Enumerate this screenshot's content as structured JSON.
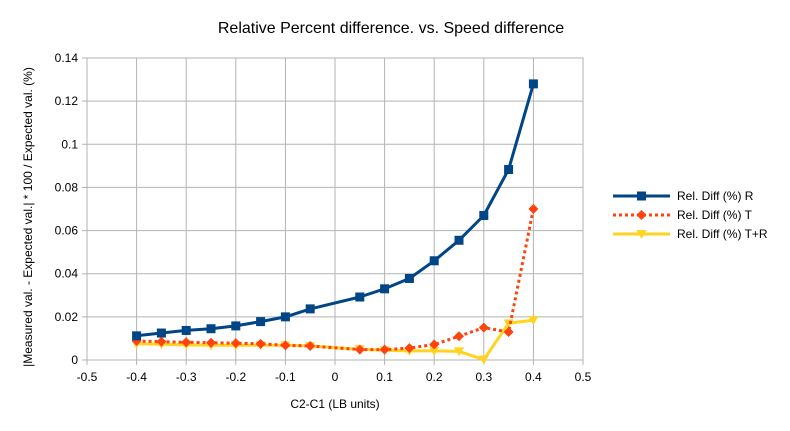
{
  "chart_data": {
    "type": "line",
    "title": "Relative Percent difference. vs. Speed difference",
    "xlabel": "C2-C1 (LB units)",
    "ylabel": "|Measured val. - Expected val.| * 100 / Expected val. (%)",
    "xlim": [
      -0.5,
      0.5
    ],
    "ylim": [
      0,
      0.14
    ],
    "x_ticks": [
      "-0.5",
      "-0.4",
      "-0.3",
      "-0.2",
      "-0.1",
      "0",
      "0.1",
      "0.2",
      "0.3",
      "0.4",
      "0.5"
    ],
    "y_ticks": [
      "0",
      "0.02",
      "0.04",
      "0.06",
      "0.08",
      "0.1",
      "0.12",
      "0.14"
    ],
    "grid": "horizontal and vertical major gridlines",
    "legend_position": "right",
    "x": [
      -0.4,
      -0.35,
      -0.3,
      -0.25,
      -0.2,
      -0.15,
      -0.1,
      -0.05,
      0.05,
      0.1,
      0.15,
      0.2,
      0.25,
      0.3,
      0.35,
      0.4
    ],
    "series": [
      {
        "name": "Rel. Diff (%) R",
        "color": "#004586",
        "line_style": "solid",
        "marker": "square",
        "values": [
          0.0112,
          0.0125,
          0.0137,
          0.0145,
          0.0158,
          0.0178,
          0.02,
          0.0237,
          0.0292,
          0.033,
          0.0378,
          0.046,
          0.0555,
          0.067,
          0.0883,
          0.128
        ]
      },
      {
        "name": "Rel. Diff (%) T",
        "color": "#ff420e",
        "line_style": "dotted",
        "marker": "diamond",
        "values": [
          0.0088,
          0.0085,
          0.0082,
          0.008,
          0.0078,
          0.0075,
          0.0068,
          0.0065,
          0.0048,
          0.0048,
          0.0055,
          0.0072,
          0.011,
          0.015,
          0.013,
          0.07
        ]
      },
      {
        "name": "Rel. Diff (%) T+R",
        "color": "#ffd320",
        "line_style": "solid",
        "marker": "triangle-down",
        "values": [
          0.0075,
          0.0073,
          0.007,
          0.0068,
          0.0068,
          0.0068,
          0.0068,
          0.0065,
          0.005,
          0.0045,
          0.0042,
          0.0042,
          0.004,
          0.0002,
          0.017,
          0.0185
        ]
      }
    ]
  }
}
